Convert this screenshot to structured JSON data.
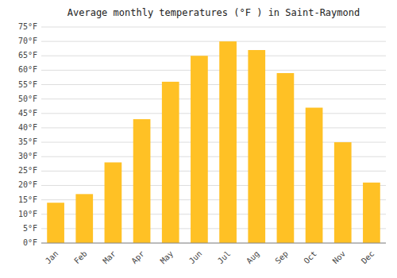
{
  "chart_data": {
    "type": "bar",
    "title": "Average monthly temperatures (°F ) in Saint-Raymond",
    "categories": [
      "Jan",
      "Feb",
      "Mar",
      "Apr",
      "May",
      "Jun",
      "Jul",
      "Aug",
      "Sep",
      "Oct",
      "Nov",
      "Dec"
    ],
    "values": [
      14,
      17,
      28,
      43,
      56,
      65,
      70,
      67,
      59,
      47,
      35,
      21
    ],
    "color": "#FFC125",
    "ylim": [
      0,
      75
    ],
    "yticks": [
      {
        "value": 0,
        "label": "0°F"
      },
      {
        "value": 5,
        "label": "5°F"
      },
      {
        "value": 10,
        "label": "10°F"
      },
      {
        "value": 15,
        "label": "15°F"
      },
      {
        "value": 20,
        "label": "20°F"
      },
      {
        "value": 25,
        "label": "25°F"
      },
      {
        "value": 30,
        "label": "30°F"
      },
      {
        "value": 35,
        "label": "35°F"
      },
      {
        "value": 40,
        "label": "40°F"
      },
      {
        "value": 45,
        "label": "45°F"
      },
      {
        "value": 50,
        "label": "50°F"
      },
      {
        "value": 55,
        "label": "55°F"
      },
      {
        "value": 60,
        "label": "60°F"
      },
      {
        "value": 65,
        "label": "65°F"
      },
      {
        "value": 70,
        "label": "70°F"
      },
      {
        "value": 75,
        "label": "75°F"
      }
    ],
    "grid": true
  }
}
